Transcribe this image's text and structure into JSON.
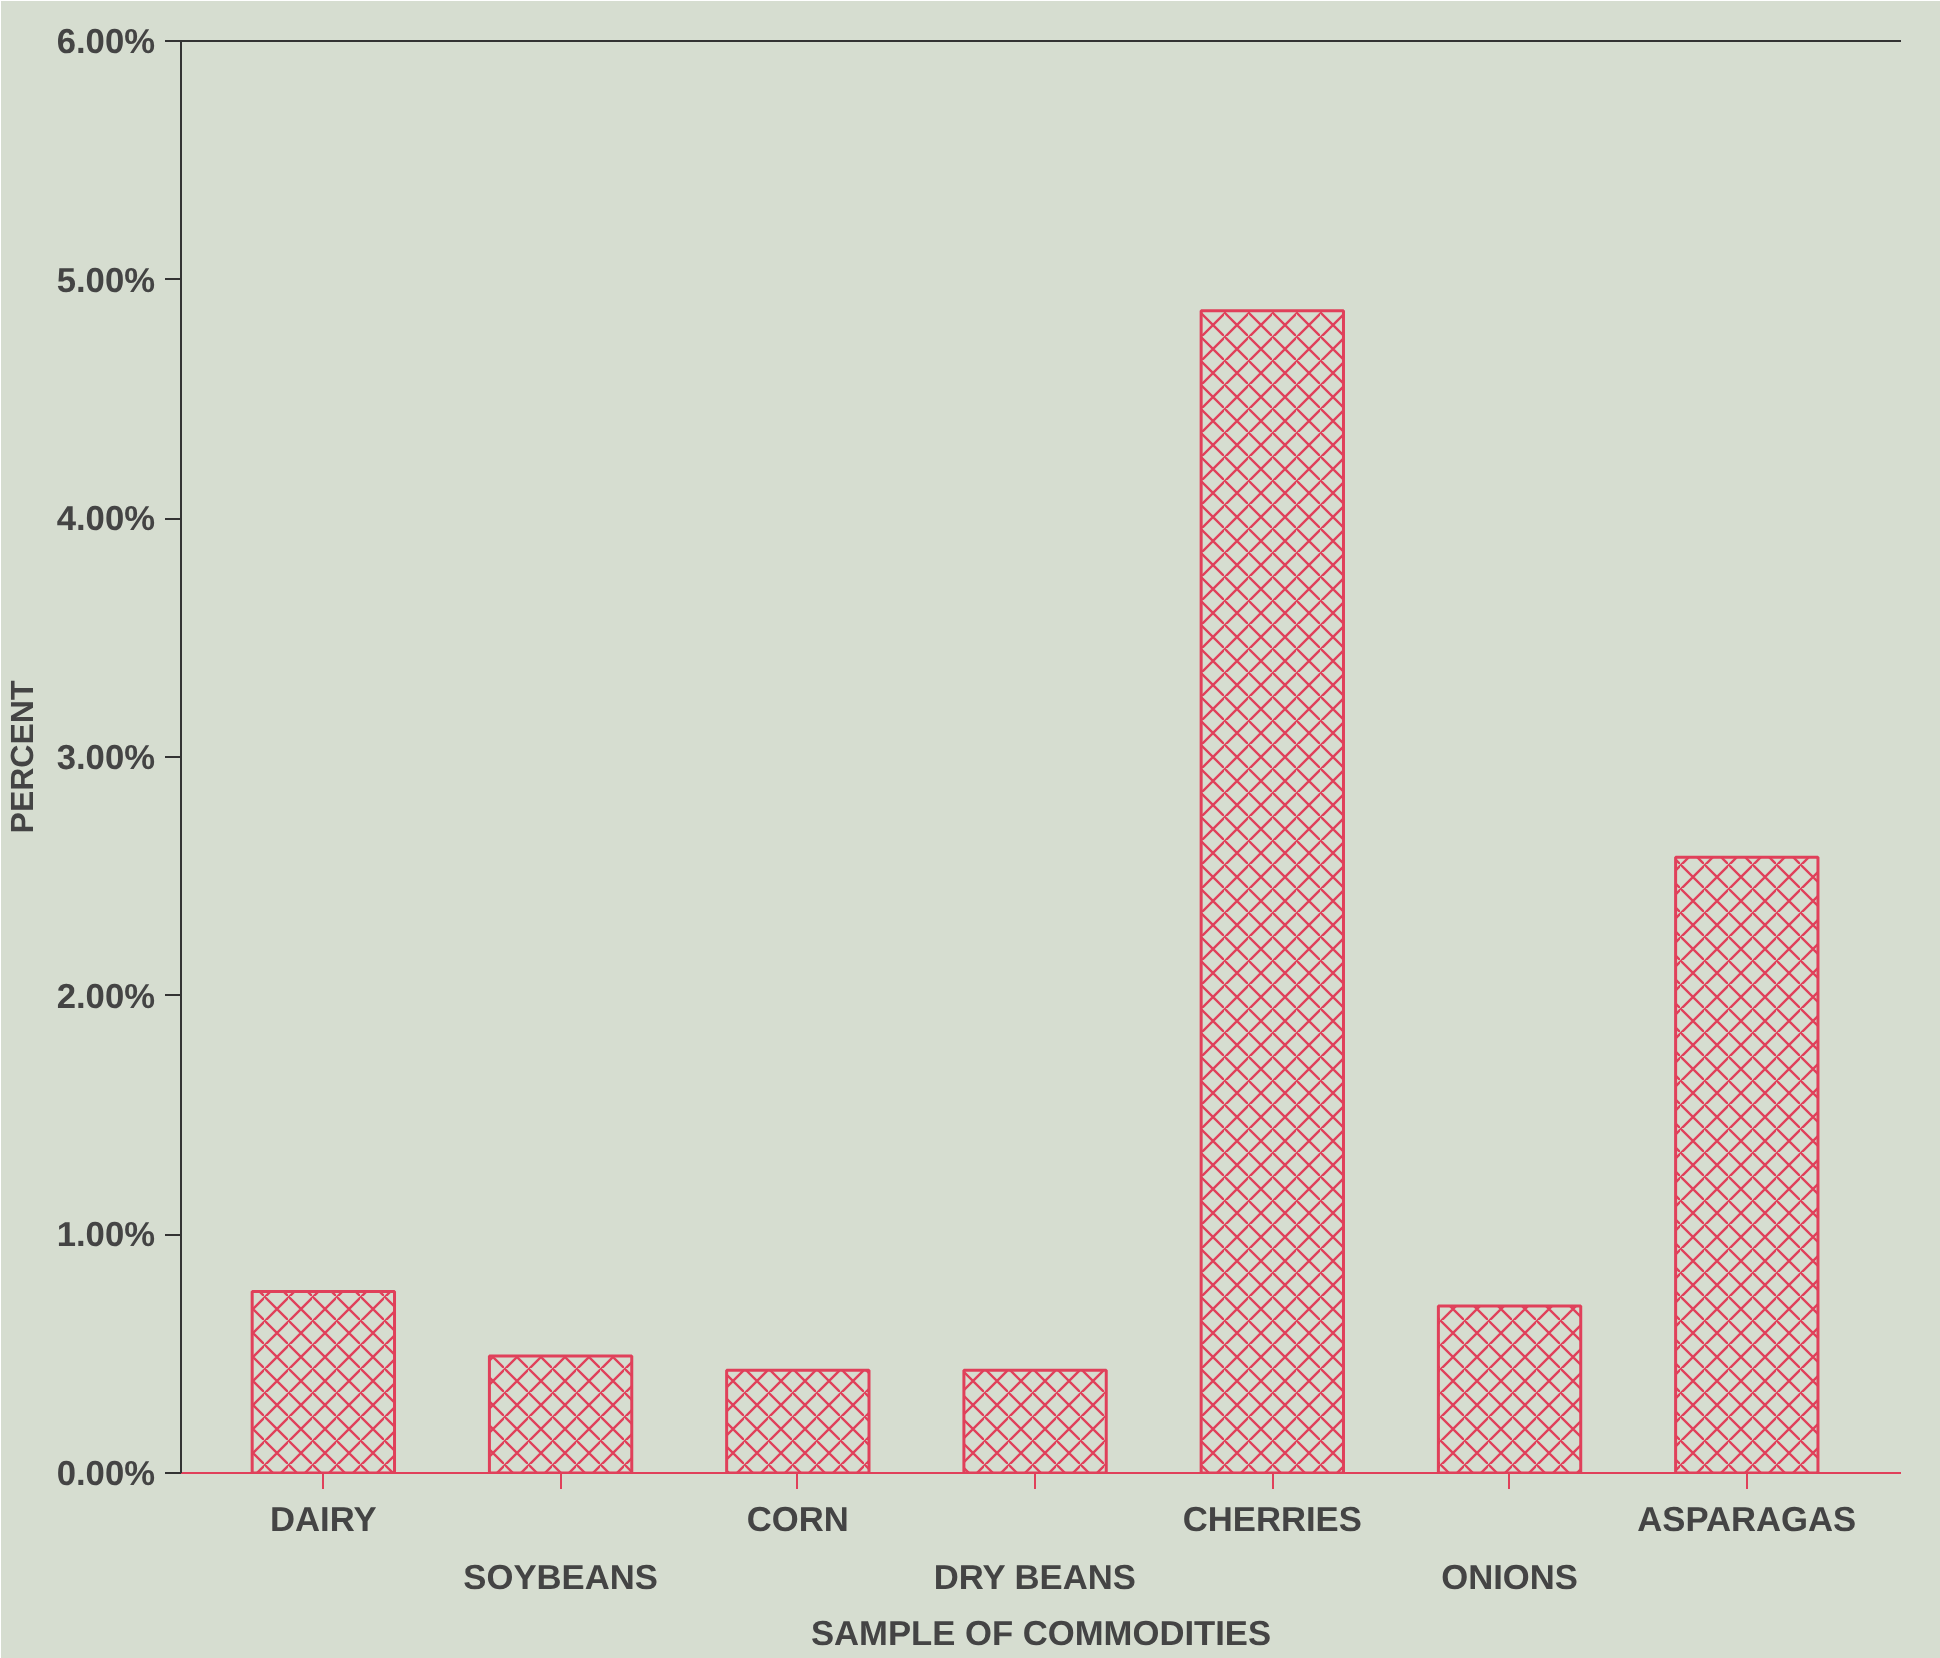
{
  "chart_data": {
    "type": "bar",
    "categories": [
      "DAIRY",
      "SOYBEANS",
      "CORN",
      "DRY BEANS",
      "CHERRIES",
      "ONIONS",
      "ASPARAGAS"
    ],
    "values": [
      0.76,
      0.49,
      0.43,
      0.43,
      4.87,
      0.7,
      2.58
    ],
    "color": "#e0405a",
    "ylim": [
      0,
      6
    ],
    "yticks": [
      {
        "value": 0,
        "label": "0.00%"
      },
      {
        "value": 1,
        "label": "1.00%"
      },
      {
        "value": 2,
        "label": "2.00%"
      },
      {
        "value": 3,
        "label": "3.00%"
      },
      {
        "value": 4,
        "label": "4.00%"
      },
      {
        "value": 5,
        "label": "5.00%"
      },
      {
        "value": 6,
        "label": "6.00%"
      }
    ],
    "xlabel": "SAMPLE OF COMMODITIES",
    "ylabel": "PERCENT",
    "grid": false
  }
}
